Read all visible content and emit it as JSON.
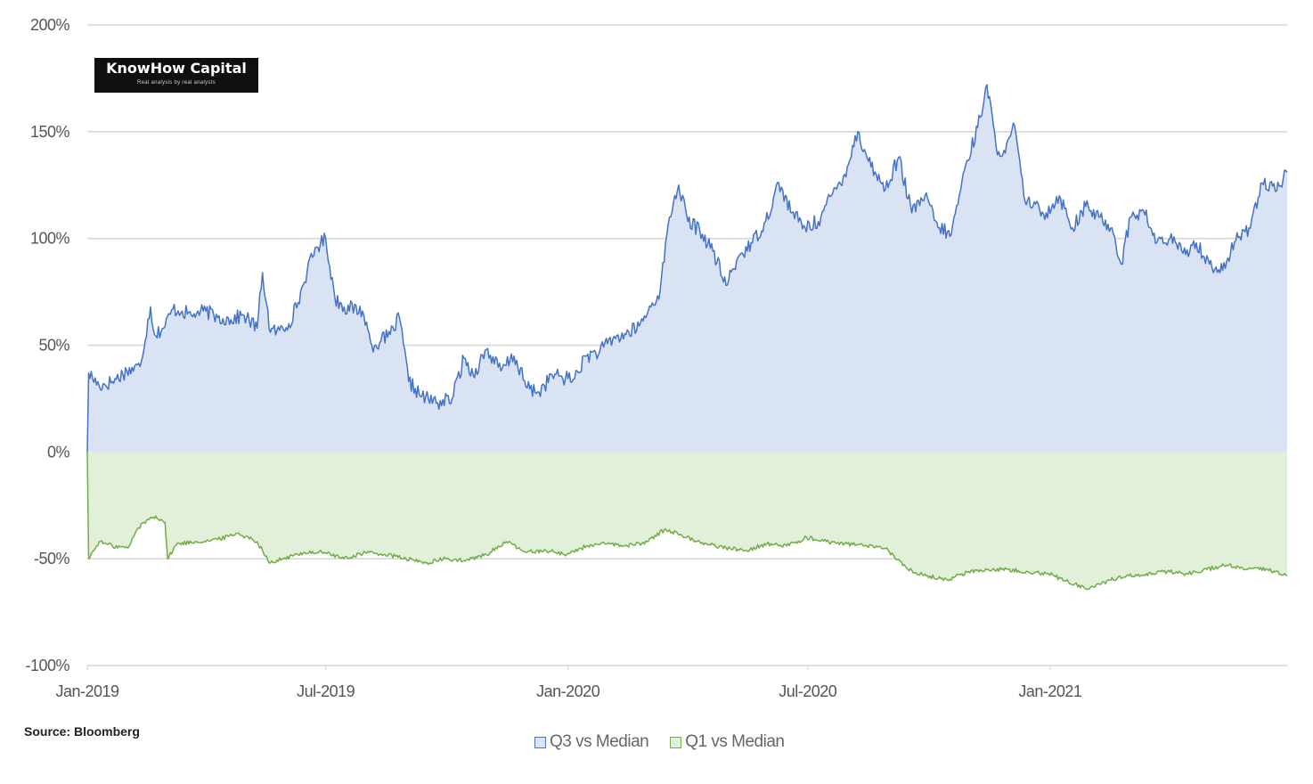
{
  "logo": {
    "title": "KnowHow Capital",
    "tagline": "Real analysis by real analysts"
  },
  "source": "Source: Bloomberg",
  "chart_data": {
    "type": "area",
    "title": "",
    "xlabel": "",
    "ylabel": "",
    "ylim": [
      -1.0,
      2.0
    ],
    "yticks": [
      2.0,
      1.5,
      1.0,
      0.5,
      0.0,
      -0.5,
      -1.0
    ],
    "ytick_labels": [
      "200%",
      "150%",
      "100%",
      "50%",
      "0%",
      "-50%",
      "-100%"
    ],
    "xlim": [
      "2019-01-01",
      "2021-06-30"
    ],
    "xticks": [
      "2019-01-01",
      "2019-07-01",
      "2020-01-01",
      "2020-07-01",
      "2021-01-01"
    ],
    "xtick_labels": [
      "Jan-2019",
      "Jul-2019",
      "Jan-2020",
      "Jul-2020",
      "Jan-2021"
    ],
    "grid": true,
    "legend_position": "bottom",
    "series": [
      {
        "name": "Q3 vs Median",
        "color": "#4472C4",
        "fill": "#DAE3F3",
        "x": [
          "2019-01-01",
          "2019-01-02",
          "2019-01-10",
          "2019-01-20",
          "2019-01-31",
          "2019-02-10",
          "2019-02-18",
          "2019-02-21",
          "2019-02-28",
          "2019-03-07",
          "2019-03-14",
          "2019-03-21",
          "2019-03-25",
          "2019-04-01",
          "2019-04-10",
          "2019-04-20",
          "2019-04-30",
          "2019-05-10",
          "2019-05-14",
          "2019-05-20",
          "2019-05-27",
          "2019-06-03",
          "2019-06-10",
          "2019-06-17",
          "2019-06-24",
          "2019-07-01",
          "2019-07-08",
          "2019-07-15",
          "2019-07-29",
          "2019-08-05",
          "2019-08-12",
          "2019-08-19",
          "2019-08-26",
          "2019-09-02",
          "2019-09-12",
          "2019-09-24",
          "2019-10-05",
          "2019-10-14",
          "2019-10-21",
          "2019-10-31",
          "2019-11-11",
          "2019-11-21",
          "2019-12-01",
          "2019-12-10",
          "2019-12-20",
          "2020-01-05",
          "2020-01-15",
          "2020-01-25",
          "2020-02-04",
          "2020-02-14",
          "2020-02-24",
          "2020-03-04",
          "2020-03-11",
          "2020-03-18",
          "2020-03-25",
          "2020-04-01",
          "2020-04-10",
          "2020-04-20",
          "2020-04-30",
          "2020-05-10",
          "2020-05-20",
          "2020-05-30",
          "2020-06-09",
          "2020-06-19",
          "2020-06-29",
          "2020-07-09",
          "2020-07-19",
          "2020-07-29",
          "2020-08-08",
          "2020-08-15",
          "2020-08-22",
          "2020-08-29",
          "2020-09-08",
          "2020-09-18",
          "2020-09-28",
          "2020-10-08",
          "2020-10-18",
          "2020-10-28",
          "2020-11-07",
          "2020-11-14",
          "2020-11-21",
          "2020-11-28",
          "2020-12-05",
          "2020-12-12",
          "2020-12-19",
          "2020-12-29",
          "2021-01-08",
          "2021-01-18",
          "2021-01-28",
          "2021-02-07",
          "2021-02-17",
          "2021-02-24",
          "2021-03-03",
          "2021-03-13",
          "2021-03-23",
          "2021-04-02",
          "2021-04-12",
          "2021-04-22",
          "2021-05-02",
          "2021-05-12",
          "2021-05-22",
          "2021-06-01",
          "2021-06-11",
          "2021-06-21",
          "2021-06-30"
        ],
        "y": [
          0.0,
          0.37,
          0.31,
          0.33,
          0.38,
          0.4,
          0.68,
          0.55,
          0.58,
          0.67,
          0.66,
          0.64,
          0.65,
          0.66,
          0.63,
          0.62,
          0.64,
          0.58,
          0.84,
          0.56,
          0.57,
          0.6,
          0.7,
          0.85,
          0.96,
          1.0,
          0.72,
          0.68,
          0.66,
          0.5,
          0.52,
          0.55,
          0.63,
          0.33,
          0.26,
          0.23,
          0.25,
          0.44,
          0.36,
          0.48,
          0.38,
          0.45,
          0.3,
          0.28,
          0.36,
          0.34,
          0.45,
          0.47,
          0.53,
          0.55,
          0.59,
          0.68,
          0.76,
          1.1,
          1.25,
          1.08,
          1.04,
          0.94,
          0.78,
          0.92,
          0.98,
          1.08,
          1.26,
          1.12,
          1.05,
          1.08,
          1.2,
          1.3,
          1.5,
          1.38,
          1.3,
          1.23,
          1.38,
          1.12,
          1.2,
          1.05,
          1.02,
          1.32,
          1.52,
          1.72,
          1.43,
          1.4,
          1.53,
          1.2,
          1.15,
          1.12,
          1.2,
          1.05,
          1.15,
          1.1,
          1.05,
          0.88,
          1.1,
          1.13,
          0.98,
          1.0,
          0.93,
          0.98,
          0.88,
          0.85,
          0.99,
          1.05,
          1.26,
          1.22,
          1.31
        ]
      },
      {
        "name": "Q1 vs Median",
        "color": "#70AD47",
        "fill": "#E2F0D9",
        "x": [
          "2019-01-01",
          "2019-01-02",
          "2019-01-10",
          "2019-01-20",
          "2019-02-01",
          "2019-02-08",
          "2019-02-15",
          "2019-02-22",
          "2019-03-01",
          "2019-03-03",
          "2019-03-10",
          "2019-03-25",
          "2019-04-10",
          "2019-04-25",
          "2019-05-10",
          "2019-05-20",
          "2019-05-30",
          "2019-06-15",
          "2019-06-30",
          "2019-07-15",
          "2019-07-31",
          "2019-08-15",
          "2019-08-31",
          "2019-09-15",
          "2019-09-30",
          "2019-10-15",
          "2019-10-31",
          "2019-11-15",
          "2019-11-30",
          "2019-12-15",
          "2019-12-31",
          "2020-01-15",
          "2020-01-31",
          "2020-02-15",
          "2020-03-01",
          "2020-03-15",
          "2020-03-31",
          "2020-04-15",
          "2020-04-30",
          "2020-05-15",
          "2020-05-31",
          "2020-06-15",
          "2020-06-30",
          "2020-07-15",
          "2020-07-31",
          "2020-08-15",
          "2020-08-31",
          "2020-09-15",
          "2020-09-30",
          "2020-10-15",
          "2020-10-31",
          "2020-11-15",
          "2020-11-30",
          "2020-12-15",
          "2020-12-31",
          "2021-01-15",
          "2021-01-31",
          "2021-02-15",
          "2021-02-28",
          "2021-03-15",
          "2021-03-31",
          "2021-04-15",
          "2021-04-30",
          "2021-05-15",
          "2021-05-31",
          "2021-06-15",
          "2021-06-30"
        ],
        "y": [
          0.0,
          -0.5,
          -0.42,
          -0.44,
          -0.45,
          -0.36,
          -0.32,
          -0.3,
          -0.33,
          -0.5,
          -0.43,
          -0.42,
          -0.41,
          -0.38,
          -0.42,
          -0.52,
          -0.5,
          -0.47,
          -0.47,
          -0.5,
          -0.47,
          -0.48,
          -0.5,
          -0.52,
          -0.5,
          -0.51,
          -0.48,
          -0.42,
          -0.47,
          -0.46,
          -0.48,
          -0.44,
          -0.43,
          -0.44,
          -0.42,
          -0.36,
          -0.4,
          -0.43,
          -0.45,
          -0.46,
          -0.43,
          -0.44,
          -0.4,
          -0.42,
          -0.43,
          -0.44,
          -0.46,
          -0.55,
          -0.58,
          -0.6,
          -0.56,
          -0.55,
          -0.55,
          -0.56,
          -0.57,
          -0.61,
          -0.64,
          -0.6,
          -0.58,
          -0.57,
          -0.56,
          -0.57,
          -0.55,
          -0.53,
          -0.55,
          -0.55,
          -0.58
        ]
      }
    ]
  }
}
